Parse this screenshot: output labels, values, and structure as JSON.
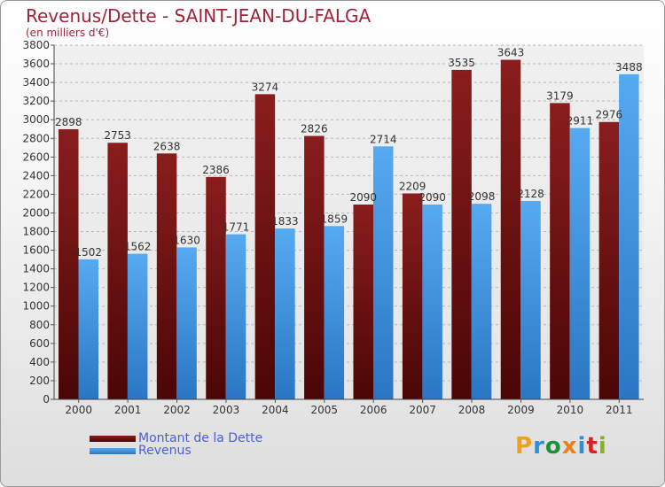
{
  "header": {
    "title": "Revenus/Dette - SAINT-JEAN-DU-FALGA",
    "subtitle": "(en milliers d'€)"
  },
  "legend": [
    {
      "label": "Montant de la Dette",
      "color": "#7a1616"
    },
    {
      "label": "Revenus",
      "color": "#3b8fe0"
    }
  ],
  "brand": {
    "text": "Proxiti",
    "colors": [
      "#f0a020",
      "#2a8fd8",
      "#1f8f3a",
      "#f08018",
      "#2a8fd8",
      "#d82020",
      "#8ab020"
    ]
  },
  "chart_data": {
    "type": "bar",
    "categories": [
      "2000",
      "2001",
      "2002",
      "2003",
      "2004",
      "2005",
      "2006",
      "2007",
      "2008",
      "2009",
      "2010",
      "2011"
    ],
    "series": [
      {
        "name": "Montant de la Dette",
        "color": "#7a1616",
        "values": [
          2898,
          2753,
          2638,
          2386,
          3274,
          2826,
          2090,
          2209,
          3535,
          3643,
          3179,
          2976
        ]
      },
      {
        "name": "Revenus",
        "color": "#3b8fe0",
        "values": [
          1502,
          1562,
          1630,
          1771,
          1833,
          1859,
          2714,
          2090,
          2098,
          2128,
          2911,
          3488
        ]
      }
    ],
    "ylim": [
      0,
      3800
    ],
    "yticks": [
      0,
      200,
      400,
      600,
      800,
      1000,
      1200,
      1400,
      1600,
      1800,
      2000,
      2200,
      2400,
      2600,
      2800,
      3000,
      3200,
      3400,
      3600,
      3800
    ],
    "grid": true,
    "legend_position": "bottom-left"
  }
}
